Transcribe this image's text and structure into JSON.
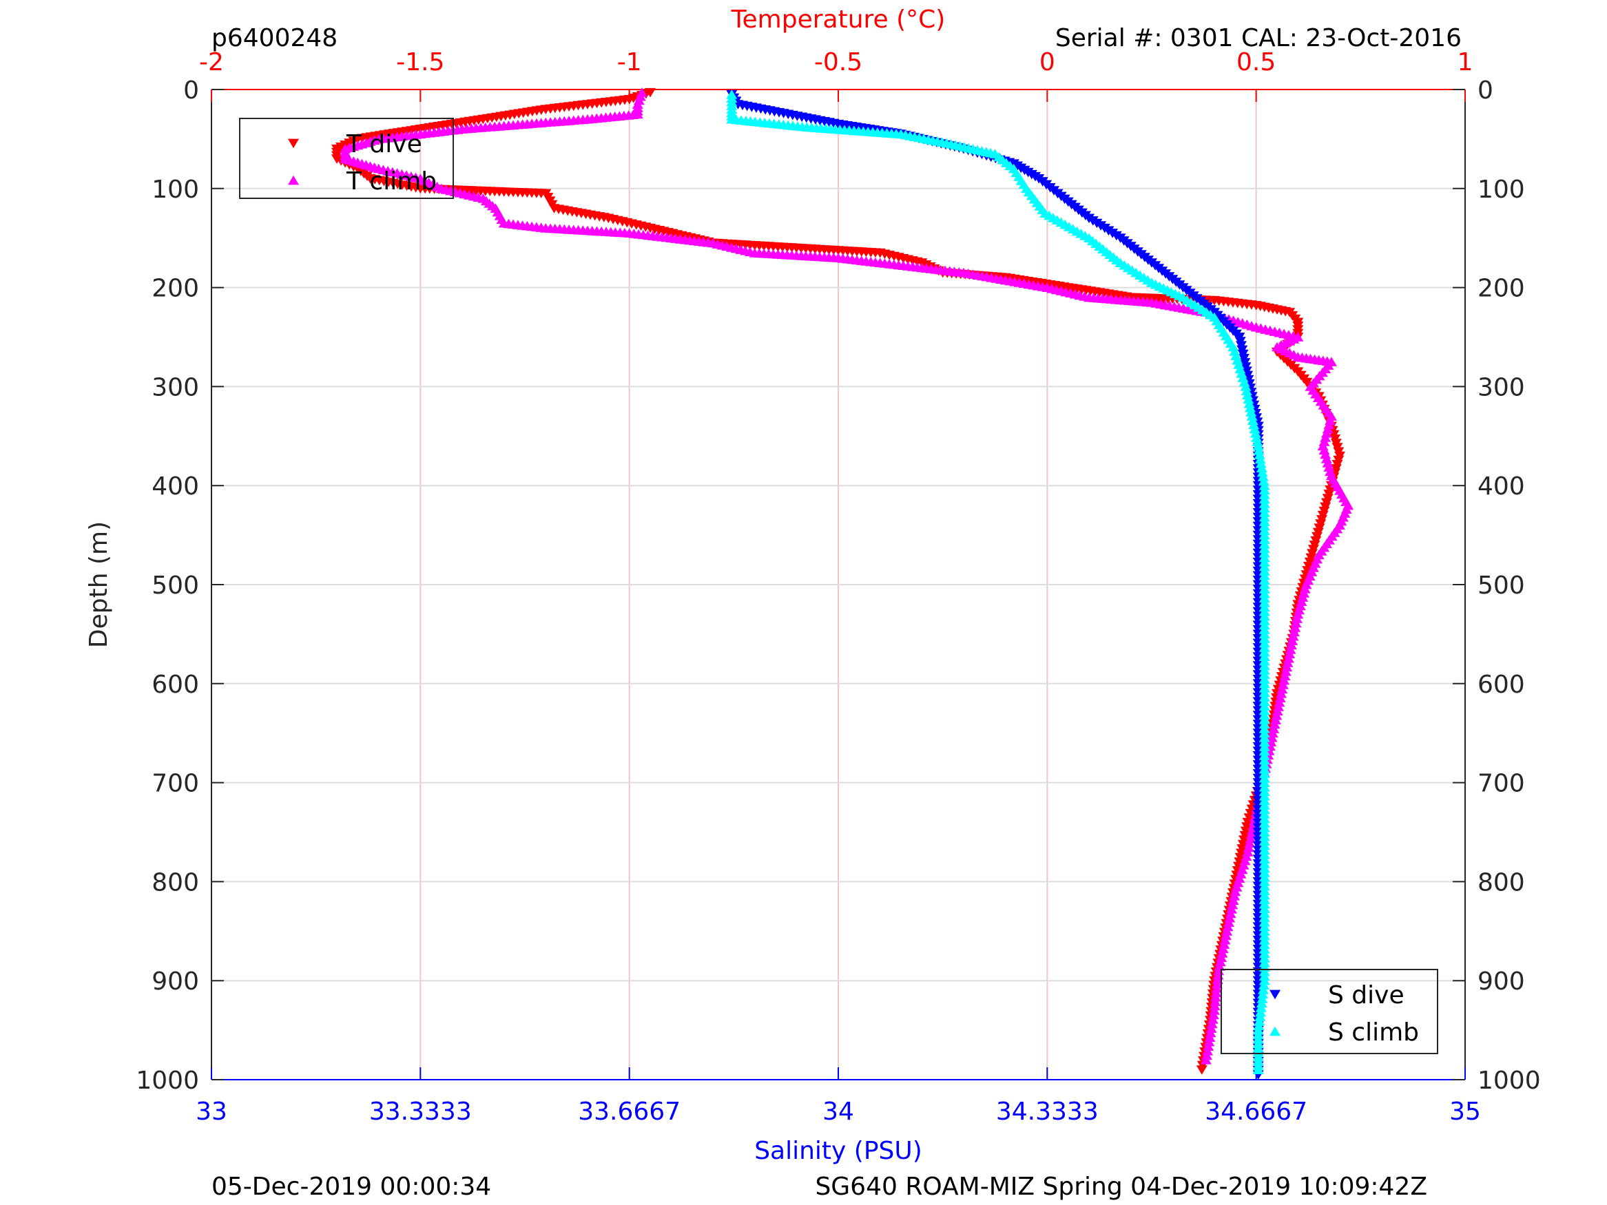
{
  "header": {
    "profile_id": "p6400248",
    "serial": "Serial #: 0301  CAL: 23-Oct-2016"
  },
  "footer": {
    "left": "05-Dec-2019 00:00:34",
    "right": "SG640 ROAM-MIZ Spring 04-Dec-2019 10:09:42Z"
  },
  "colors": {
    "t_dive": "#ff0000",
    "t_climb": "#ff00ff",
    "s_dive": "#0000ff",
    "s_climb": "#00ffff",
    "temp_axis": "#ff0000",
    "sal_axis": "#0000ff",
    "grid": "#dddddd",
    "temp_grid": "#f0c8c8"
  },
  "chart_data": {
    "type": "scatter",
    "title": "",
    "top_axis": {
      "label": "Temperature (°C)",
      "range": [
        -2,
        1
      ],
      "ticks": [
        -2,
        -1.5,
        -1,
        -0.5,
        0,
        0.5,
        1
      ],
      "tick_labels": [
        "-2",
        "-1.5",
        "-1",
        "-0.5",
        "0",
        "0.5",
        "1"
      ]
    },
    "bottom_axis": {
      "label": "Salinity (PSU)",
      "range": [
        33,
        35
      ],
      "ticks": [
        33,
        33.3333,
        33.6667,
        34,
        34.3333,
        34.6667,
        35
      ],
      "tick_labels": [
        "33",
        "33.3333",
        "33.6667",
        "34",
        "34.3333",
        "34.6667",
        "35"
      ]
    },
    "y_axis": {
      "label": "Depth (m)",
      "range": [
        0,
        1000
      ],
      "reversed": true,
      "ticks": [
        0,
        100,
        200,
        300,
        400,
        500,
        600,
        700,
        800,
        900,
        1000
      ],
      "tick_labels": [
        "0",
        "100",
        "200",
        "300",
        "400",
        "500",
        "600",
        "700",
        "800",
        "900",
        "1000"
      ]
    },
    "grid": true,
    "legend_temperature": {
      "placement": "top-left",
      "entries": [
        "T dive",
        "T climb"
      ]
    },
    "legend_salinity": {
      "placement": "bottom-right",
      "entries": [
        "S dive",
        "S climb"
      ]
    },
    "series": [
      {
        "name": "T dive",
        "axis": "temperature",
        "marker": "triangle-down",
        "points": [
          [
            -0.95,
            3
          ],
          [
            -1.0,
            10
          ],
          [
            -1.1,
            15
          ],
          [
            -1.2,
            20
          ],
          [
            -1.35,
            30
          ],
          [
            -1.5,
            40
          ],
          [
            -1.65,
            50
          ],
          [
            -1.7,
            60
          ],
          [
            -1.7,
            70
          ],
          [
            -1.65,
            80
          ],
          [
            -1.62,
            90
          ],
          [
            -1.5,
            100
          ],
          [
            -1.2,
            105
          ],
          [
            -1.18,
            120
          ],
          [
            -1.05,
            130
          ],
          [
            -0.95,
            140
          ],
          [
            -0.8,
            155
          ],
          [
            -0.6,
            160
          ],
          [
            -0.4,
            165
          ],
          [
            -0.3,
            175
          ],
          [
            -0.25,
            185
          ],
          [
            -0.1,
            190
          ],
          [
            0.05,
            200
          ],
          [
            0.2,
            210
          ],
          [
            0.4,
            213
          ],
          [
            0.5,
            218
          ],
          [
            0.58,
            225
          ],
          [
            0.6,
            235
          ],
          [
            0.6,
            250
          ],
          [
            0.55,
            265
          ],
          [
            0.6,
            285
          ],
          [
            0.65,
            310
          ],
          [
            0.68,
            340
          ],
          [
            0.7,
            370
          ],
          [
            0.68,
            400
          ],
          [
            0.66,
            430
          ],
          [
            0.64,
            460
          ],
          [
            0.62,
            490
          ],
          [
            0.6,
            520
          ],
          [
            0.59,
            550
          ],
          [
            0.57,
            580
          ],
          [
            0.55,
            610
          ],
          [
            0.54,
            640
          ],
          [
            0.53,
            670
          ],
          [
            0.51,
            700
          ],
          [
            0.48,
            740
          ],
          [
            0.46,
            780
          ],
          [
            0.44,
            820
          ],
          [
            0.42,
            860
          ],
          [
            0.4,
            900
          ],
          [
            0.39,
            940
          ],
          [
            0.37,
            990
          ]
        ]
      },
      {
        "name": "T climb",
        "axis": "temperature",
        "marker": "triangle-up",
        "points": [
          [
            -0.97,
            3
          ],
          [
            -0.98,
            15
          ],
          [
            -0.98,
            25
          ],
          [
            -1.1,
            30
          ],
          [
            -1.4,
            40
          ],
          [
            -1.6,
            50
          ],
          [
            -1.68,
            60
          ],
          [
            -1.68,
            70
          ],
          [
            -1.6,
            80
          ],
          [
            -1.5,
            90
          ],
          [
            -1.45,
            100
          ],
          [
            -1.35,
            110
          ],
          [
            -1.32,
            120
          ],
          [
            -1.3,
            135
          ],
          [
            -1.2,
            140
          ],
          [
            -1.0,
            145
          ],
          [
            -0.8,
            155
          ],
          [
            -0.7,
            165
          ],
          [
            -0.5,
            170
          ],
          [
            -0.3,
            180
          ],
          [
            -0.2,
            185
          ],
          [
            0.0,
            200
          ],
          [
            0.1,
            210
          ],
          [
            0.25,
            215
          ],
          [
            0.38,
            225
          ],
          [
            0.5,
            240
          ],
          [
            0.6,
            250
          ],
          [
            0.55,
            260
          ],
          [
            0.6,
            270
          ],
          [
            0.68,
            275
          ],
          [
            0.63,
            300
          ],
          [
            0.68,
            330
          ],
          [
            0.66,
            360
          ],
          [
            0.68,
            390
          ],
          [
            0.72,
            420
          ],
          [
            0.7,
            440
          ],
          [
            0.65,
            470
          ],
          [
            0.62,
            500
          ],
          [
            0.6,
            530
          ],
          [
            0.58,
            570
          ],
          [
            0.56,
            610
          ],
          [
            0.54,
            650
          ],
          [
            0.52,
            690
          ],
          [
            0.5,
            730
          ],
          [
            0.48,
            770
          ],
          [
            0.45,
            810
          ],
          [
            0.43,
            850
          ],
          [
            0.41,
            890
          ],
          [
            0.4,
            930
          ],
          [
            0.38,
            980
          ]
        ]
      },
      {
        "name": "S dive",
        "axis": "salinity",
        "marker": "triangle-down",
        "points": [
          [
            33.83,
            5
          ],
          [
            33.84,
            15
          ],
          [
            33.92,
            25
          ],
          [
            34.0,
            35
          ],
          [
            34.1,
            45
          ],
          [
            34.2,
            60
          ],
          [
            34.28,
            75
          ],
          [
            34.32,
            90
          ],
          [
            34.35,
            105
          ],
          [
            34.4,
            130
          ],
          [
            34.45,
            150
          ],
          [
            34.5,
            175
          ],
          [
            34.55,
            200
          ],
          [
            34.6,
            225
          ],
          [
            34.64,
            250
          ],
          [
            34.65,
            280
          ],
          [
            34.66,
            310
          ],
          [
            34.67,
            340
          ],
          [
            34.67,
            370
          ],
          [
            34.67,
            400
          ],
          [
            34.67,
            450
          ],
          [
            34.67,
            500
          ],
          [
            34.67,
            550
          ],
          [
            34.67,
            600
          ],
          [
            34.67,
            650
          ],
          [
            34.67,
            700
          ],
          [
            34.67,
            750
          ],
          [
            34.67,
            800
          ],
          [
            34.67,
            850
          ],
          [
            34.67,
            900
          ],
          [
            34.67,
            950
          ],
          [
            34.67,
            995
          ]
        ]
      },
      {
        "name": "S climb",
        "axis": "salinity",
        "marker": "triangle-up",
        "points": [
          [
            33.83,
            5
          ],
          [
            33.83,
            20
          ],
          [
            33.83,
            30
          ],
          [
            33.95,
            38
          ],
          [
            34.1,
            45
          ],
          [
            34.18,
            55
          ],
          [
            34.25,
            65
          ],
          [
            34.28,
            80
          ],
          [
            34.3,
            100
          ],
          [
            34.33,
            125
          ],
          [
            34.4,
            150
          ],
          [
            34.45,
            175
          ],
          [
            34.5,
            195
          ],
          [
            34.55,
            210
          ],
          [
            34.6,
            230
          ],
          [
            34.63,
            260
          ],
          [
            34.65,
            300
          ],
          [
            34.66,
            330
          ],
          [
            34.67,
            360
          ],
          [
            34.68,
            400
          ],
          [
            34.68,
            450
          ],
          [
            34.68,
            500
          ],
          [
            34.68,
            550
          ],
          [
            34.68,
            600
          ],
          [
            34.68,
            650
          ],
          [
            34.68,
            700
          ],
          [
            34.68,
            750
          ],
          [
            34.68,
            800
          ],
          [
            34.68,
            850
          ],
          [
            34.68,
            900
          ],
          [
            34.67,
            950
          ],
          [
            34.67,
            990
          ]
        ]
      }
    ]
  }
}
